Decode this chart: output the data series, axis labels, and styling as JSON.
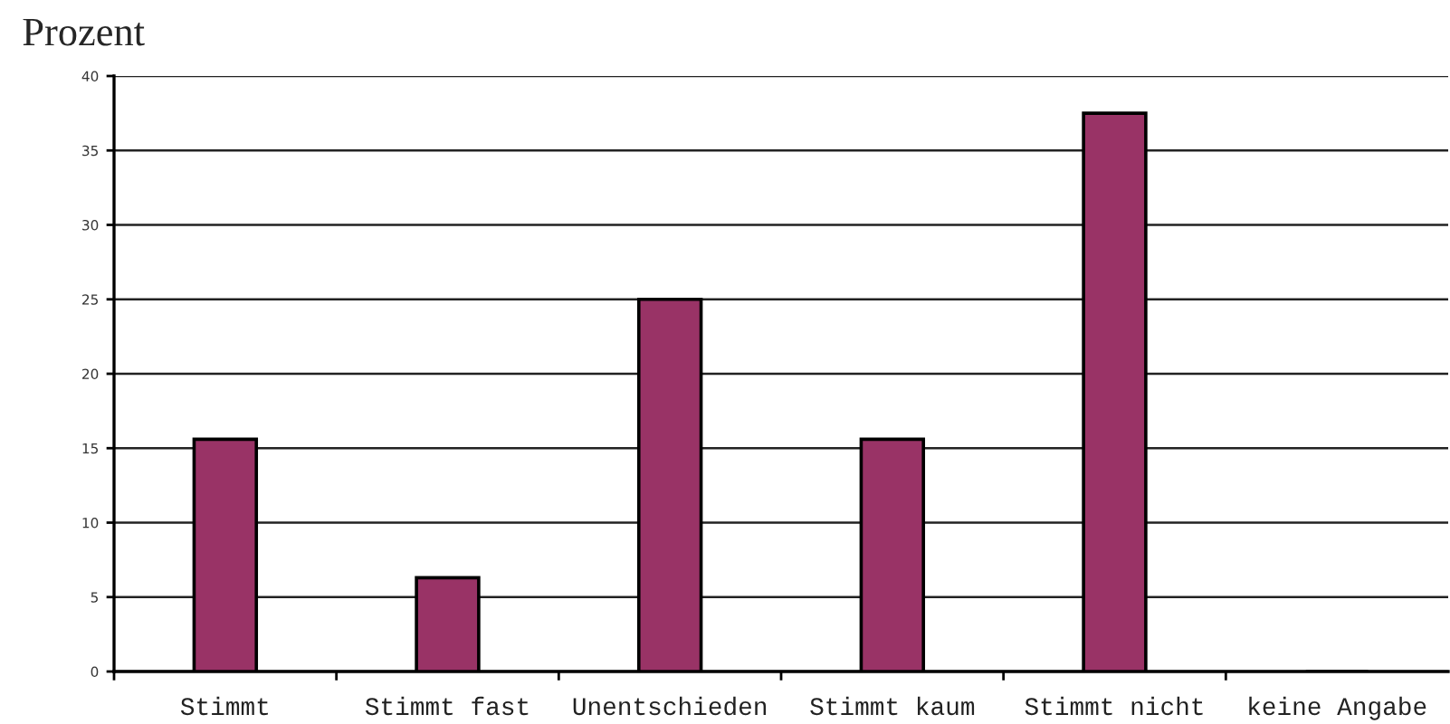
{
  "chart_data": {
    "type": "bar",
    "ylabel": "Prozent",
    "categories": [
      "Stimmt",
      "Stimmt fast",
      "Unentschieden",
      "Stimmt kaum",
      "Stimmt nicht",
      "keine Angabe"
    ],
    "values": [
      15.6,
      6.3,
      25,
      15.6,
      37.5,
      0
    ],
    "color": "#993366",
    "ylim": [
      0,
      40
    ],
    "yticks": [
      0,
      5,
      10,
      15,
      20,
      25,
      30,
      35,
      40
    ],
    "grid": "y"
  }
}
